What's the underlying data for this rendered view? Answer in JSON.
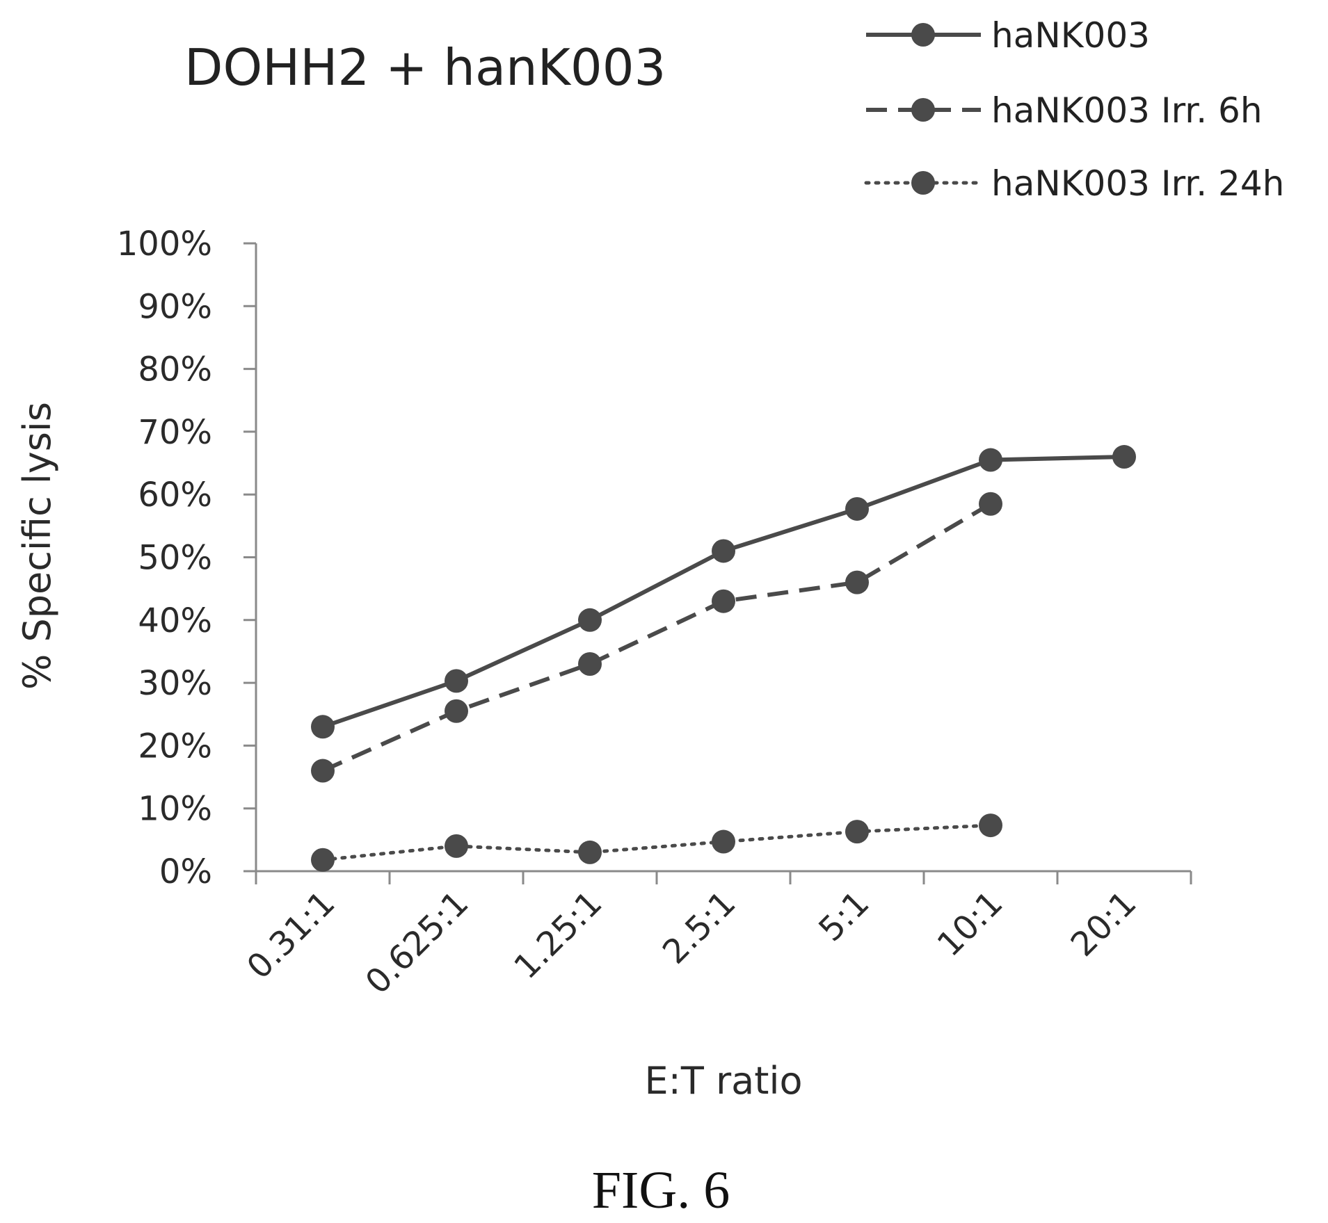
{
  "caption": "FIG. 6",
  "chart_data": {
    "type": "line",
    "title": "DOHH2 + hanK003",
    "xlabel": "E:T ratio",
    "ylabel": "% Specific lysis",
    "categories": [
      "0.31:1",
      "0.625:1",
      "1.25:1",
      "2.5:1",
      "5:1",
      "10:1",
      "20:1"
    ],
    "ylim": [
      0,
      100
    ],
    "y_ticks": [
      0,
      10,
      20,
      30,
      40,
      50,
      60,
      70,
      80,
      90,
      100
    ],
    "y_tick_labels": [
      "0%",
      "10%",
      "20%",
      "30%",
      "40%",
      "50%",
      "60%",
      "70%",
      "80%",
      "90%",
      "100%"
    ],
    "grid": false,
    "legend_position": "top-right",
    "series": [
      {
        "name": "haNK003",
        "style": "solid",
        "color": "#4a4a4a",
        "values": [
          23,
          30.3,
          40,
          51,
          57.7,
          65.5,
          66
        ]
      },
      {
        "name": "haNK003 Irr. 6h",
        "style": "dashed",
        "color": "#4a4a4a",
        "values": [
          16,
          25.5,
          33,
          43,
          46,
          58.5,
          null
        ]
      },
      {
        "name": "haNK003 Irr. 24h",
        "style": "dotted",
        "color": "#4a4a4a",
        "values": [
          1.8,
          4,
          3,
          4.7,
          6.3,
          7.3,
          null
        ]
      }
    ]
  }
}
